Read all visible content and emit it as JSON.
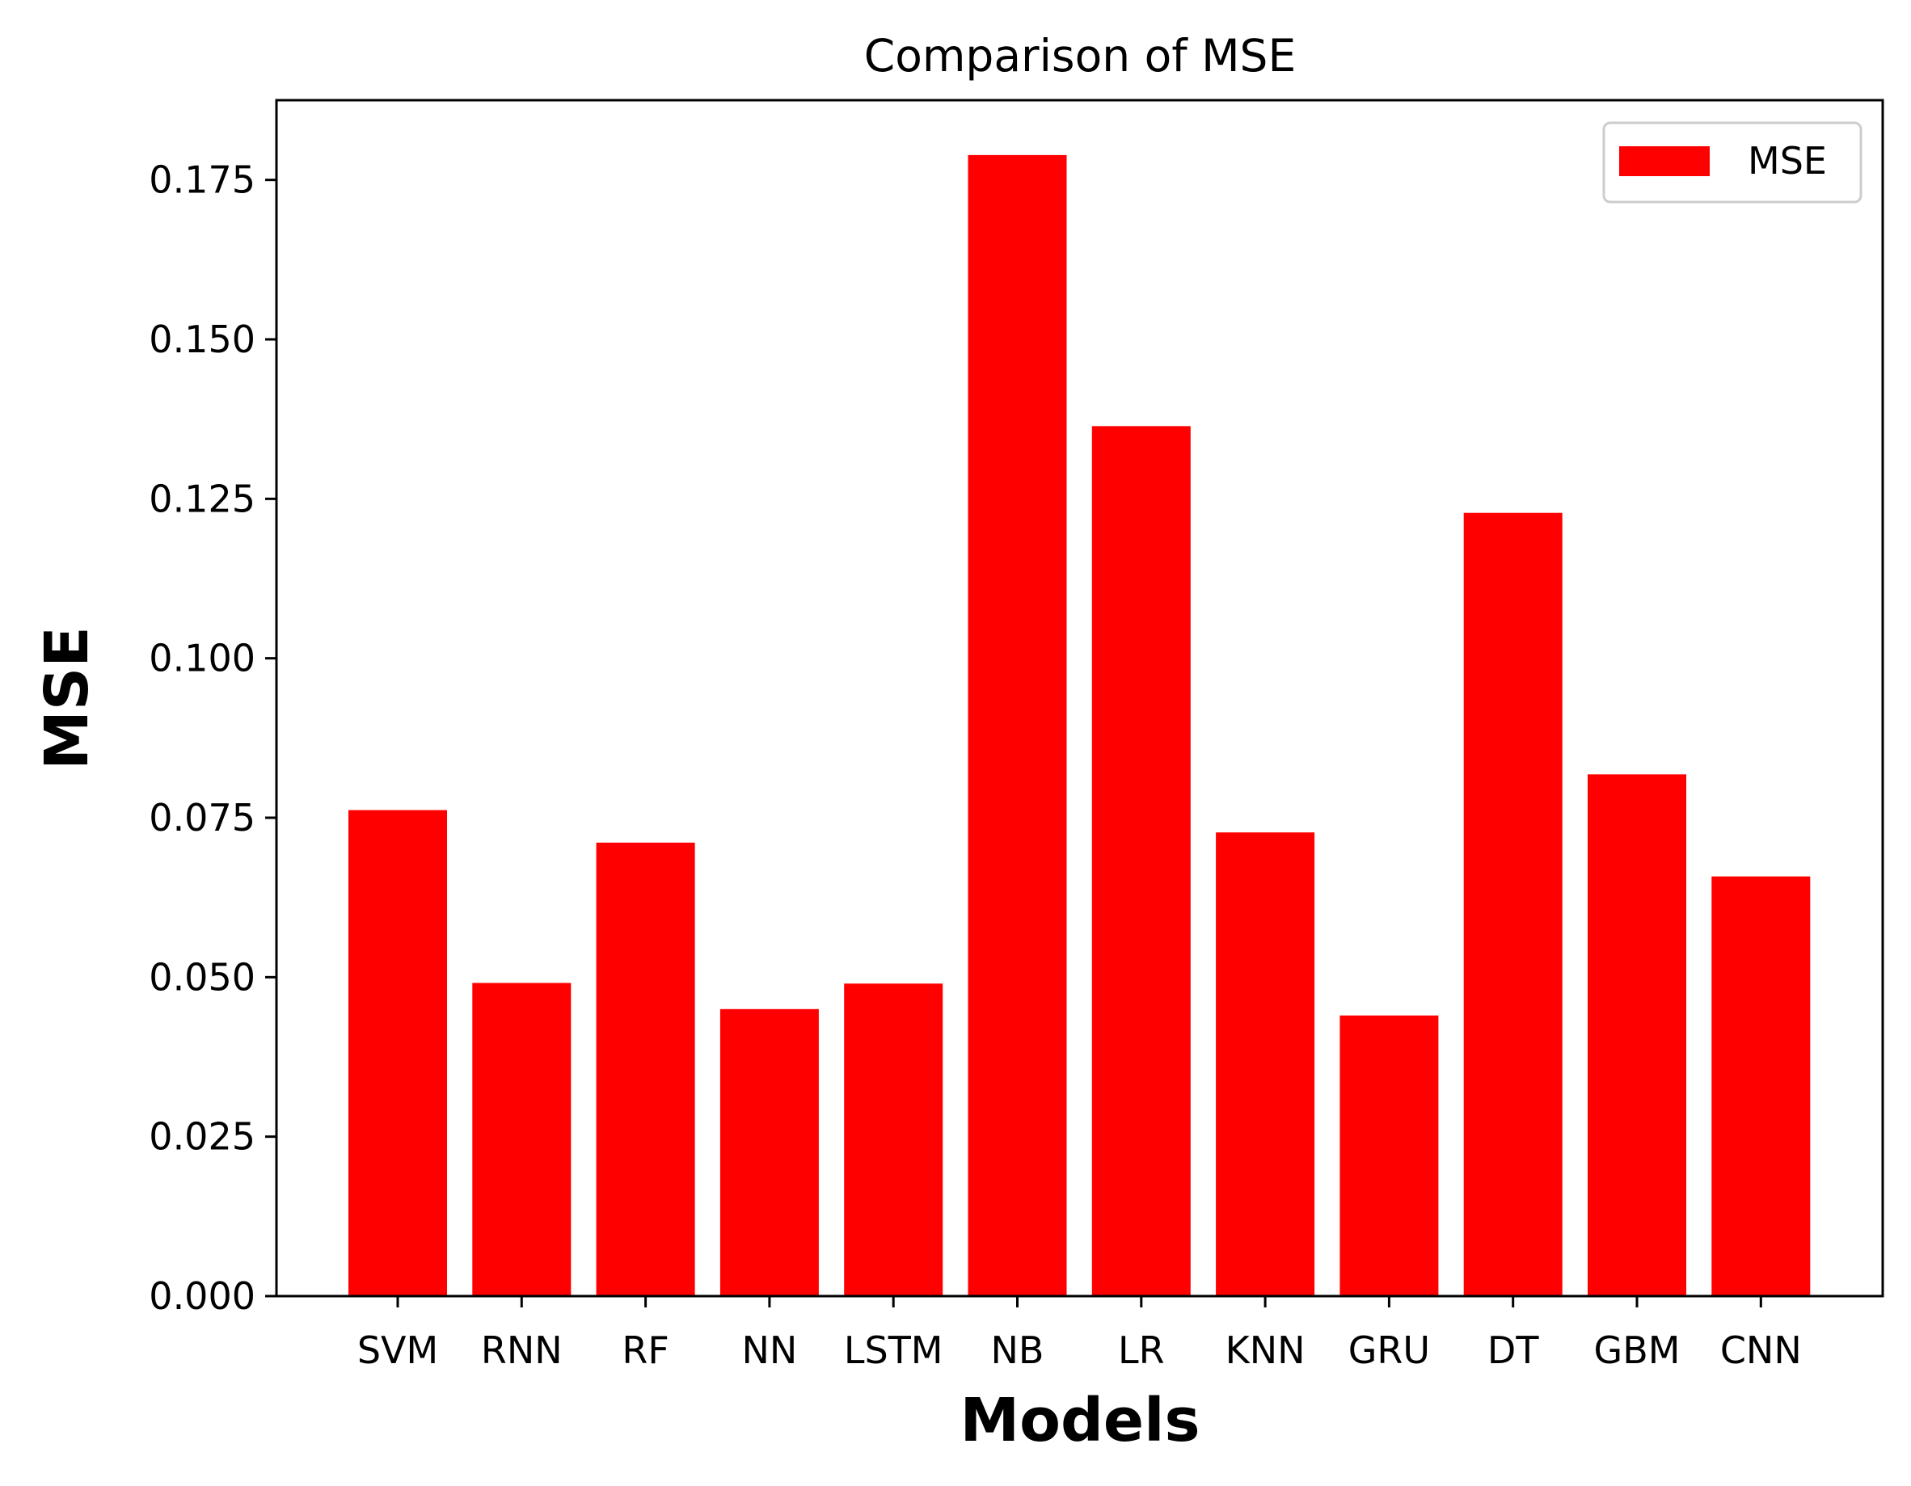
{
  "chart_data": {
    "type": "bar",
    "title": "Comparison of MSE",
    "xlabel": "Models",
    "ylabel": "MSE",
    "categories": [
      "SVM",
      "RNN",
      "RF",
      "NN",
      "LSTM",
      "NB",
      "LR",
      "KNN",
      "GRU",
      "DT",
      "GBM",
      "CNN"
    ],
    "series": [
      {
        "name": "MSE",
        "color": "#ff0000",
        "values": [
          0.0762,
          0.0491,
          0.0711,
          0.045,
          0.049,
          0.1789,
          0.1364,
          0.0727,
          0.044,
          0.1228,
          0.0818,
          0.0658
        ]
      }
    ],
    "ylim": [
      0,
      0.1875
    ],
    "yticks": [
      "0.000",
      "0.025",
      "0.050",
      "0.075",
      "0.100",
      "0.125",
      "0.150",
      "0.175"
    ],
    "grid": false,
    "legend_position": "top-right"
  }
}
